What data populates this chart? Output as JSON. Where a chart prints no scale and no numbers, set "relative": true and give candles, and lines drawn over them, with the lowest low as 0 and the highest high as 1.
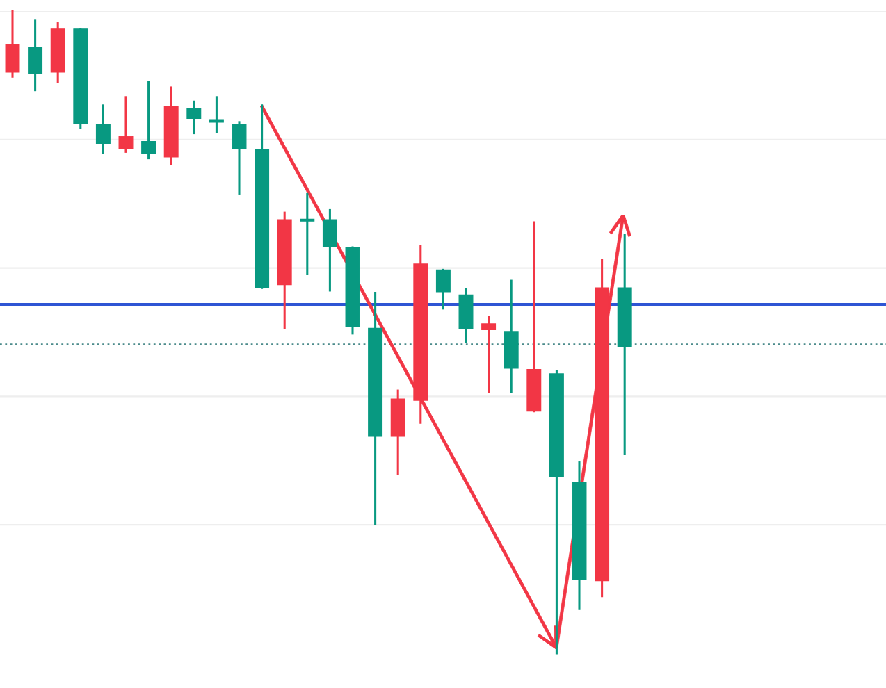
{
  "chart_data": {
    "type": "candlestick",
    "relative": true,
    "grid": true,
    "categories": [
      null,
      null,
      null,
      null,
      null,
      null,
      null,
      null,
      null,
      null,
      null,
      null,
      null,
      null,
      null,
      null,
      null,
      null,
      null,
      null,
      null,
      null,
      null,
      null,
      null,
      null,
      null,
      null
    ],
    "ohlc": [
      [
        0.905,
        1.0,
        0.898,
        0.948
      ],
      [
        0.944,
        0.985,
        0.877,
        0.903
      ],
      [
        0.905,
        0.981,
        0.89,
        0.972
      ],
      [
        0.972,
        0.972,
        0.818,
        0.825
      ],
      [
        0.823,
        0.853,
        0.779,
        0.794
      ],
      [
        0.786,
        0.866,
        0.781,
        0.805
      ],
      [
        0.797,
        0.89,
        0.771,
        0.779
      ],
      [
        0.773,
        0.881,
        0.762,
        0.851
      ],
      [
        0.848,
        0.859,
        0.81,
        0.833
      ],
      [
        0.831,
        0.866,
        0.812,
        0.827
      ],
      [
        0.823,
        0.827,
        0.716,
        0.786
      ],
      [
        0.784,
        0.853,
        0.569,
        0.569
      ],
      [
        0.574,
        0.686,
        0.506,
        0.675
      ],
      [
        0.675,
        0.716,
        0.591,
        0.673
      ],
      [
        0.675,
        0.69,
        0.565,
        0.634
      ],
      [
        0.632,
        0.632,
        0.498,
        0.509
      ],
      [
        0.506,
        0.561,
        0.201,
        0.338
      ],
      [
        0.338,
        0.409,
        0.279,
        0.396
      ],
      [
        0.394,
        0.634,
        0.359,
        0.606
      ],
      [
        0.597,
        0.597,
        0.537,
        0.563
      ],
      [
        0.558,
        0.567,
        0.485,
        0.506
      ],
      [
        0.504,
        0.524,
        0.407,
        0.513
      ],
      [
        0.5,
        0.58,
        0.407,
        0.444
      ],
      [
        0.377,
        0.671,
        0.377,
        0.442
      ],
      [
        0.435,
        0.439,
        0.0,
        0.275
      ],
      [
        0.266,
        0.297,
        0.069,
        0.115
      ],
      [
        0.113,
        0.613,
        0.089,
        0.569
      ],
      [
        0.569,
        0.652,
        0.31,
        0.478
      ]
    ],
    "colors": [
      "#f23645",
      "#089981",
      "#f23645",
      "#089981",
      "#089981",
      "#f23645",
      "#089981",
      "#f23645",
      "#089981",
      "#089981",
      "#089981",
      "#089981",
      "#f23645",
      "#089981",
      "#089981",
      "#089981",
      "#089981",
      "#f23645",
      "#f23645",
      "#089981",
      "#089981",
      "#f23645",
      "#089981",
      "#f23645",
      "#089981",
      "#089981",
      "#f23645",
      "#089981"
    ],
    "ref_lines": [
      {
        "axis": "y",
        "value": 0.543,
        "color": "#2f55d4",
        "line_style": "solid"
      },
      {
        "axis": "y",
        "value": 0.481,
        "color": "#4a8a8a",
        "line_style": "dotted"
      }
    ]
  }
}
